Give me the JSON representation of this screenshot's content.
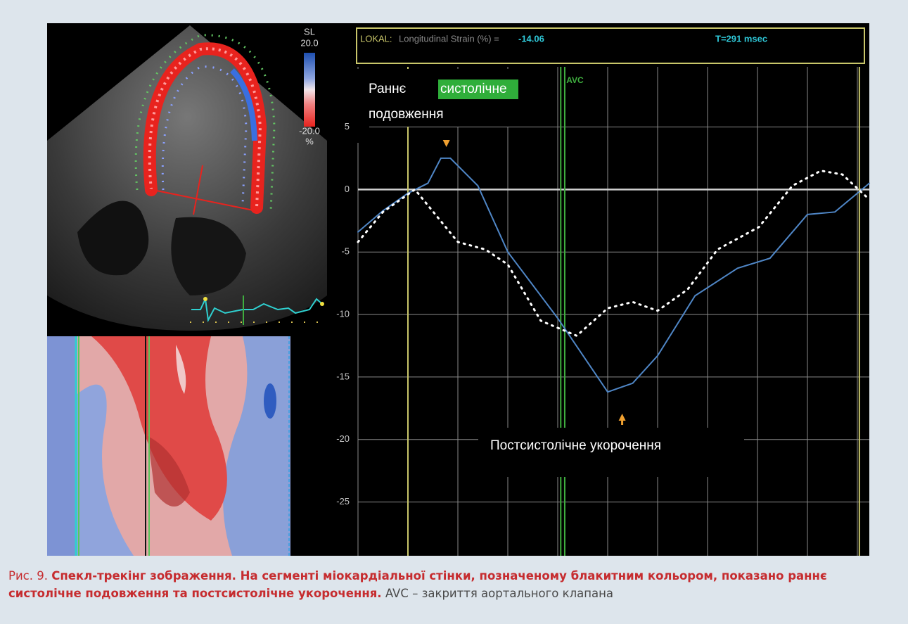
{
  "figure": {
    "label": "Рис. 9.",
    "caption_bold": "Спекл-трекінг зображення. На сегменті міокардіальної стінки, позначеному блакитним кольором, показано раннє систолічне подовження та постсистолічне укорочення.",
    "caption_note": "AVC – закриття аортального клапана",
    "echo": {
      "scale_title": "SL",
      "scale_max": "20.0",
      "scale_min": "-20.0",
      "scale_unit": "%"
    }
  },
  "chart_data": {
    "type": "line",
    "header": {
      "label": "LOKAL:",
      "text": "Longitudinal Strain (%) =",
      "value": "-14.06",
      "time": "T=291 msec"
    },
    "ylim": [
      -29.3,
      13.3
    ],
    "yticks": [
      5,
      0,
      -5,
      -10,
      -15,
      -20,
      -25
    ],
    "xlim": [
      0,
      10.3
    ],
    "grid": true,
    "vlines": [
      {
        "x": 1.0,
        "color": "#c9c66a"
      },
      {
        "x": 10.04,
        "color": "#c9c66a"
      },
      {
        "x": 4.06,
        "color": "#3fae3f",
        "label": "AVC"
      },
      {
        "x": 4.14,
        "color": "#3fae3f"
      }
    ],
    "series": [
      {
        "style": "solid",
        "color": "#4f86c6",
        "x": [
          0,
          0.5,
          1,
          1.4,
          1.66,
          1.85,
          2.4,
          3,
          4,
          5,
          5.5,
          6,
          6.75,
          7.6,
          8.25,
          9,
          9.55,
          10.24
        ],
        "values": [
          -3.4,
          -1.7,
          -0.3,
          0.5,
          2.5,
          2.5,
          0.3,
          -5,
          -10.3,
          -16.2,
          -15.5,
          -13.3,
          -8.5,
          -6.3,
          -5.5,
          -2,
          -1.8,
          0.5
        ]
      },
      {
        "style": "dotted",
        "color": "#ffffff",
        "x": [
          0,
          0.5,
          1.14,
          2,
          2.55,
          3,
          3.66,
          4.38,
          5,
          5.5,
          6,
          6.6,
          7.2,
          8.03,
          8.7,
          9.27,
          9.7,
          10.24
        ],
        "values": [
          -4.2,
          -1.8,
          0,
          -4.2,
          -4.8,
          -6,
          -10.5,
          -11.7,
          -9.5,
          -9,
          -9.7,
          -8,
          -4.8,
          -3,
          0.3,
          1.5,
          1.2,
          -0.8
        ]
      }
    ],
    "annotations": {
      "early": {
        "before": "Раннє",
        "highlight": "систолічне",
        "after": "подовження",
        "x": 1.77
      },
      "late": {
        "text": "Постсистолічне укорочення",
        "x": 5.29
      }
    }
  }
}
